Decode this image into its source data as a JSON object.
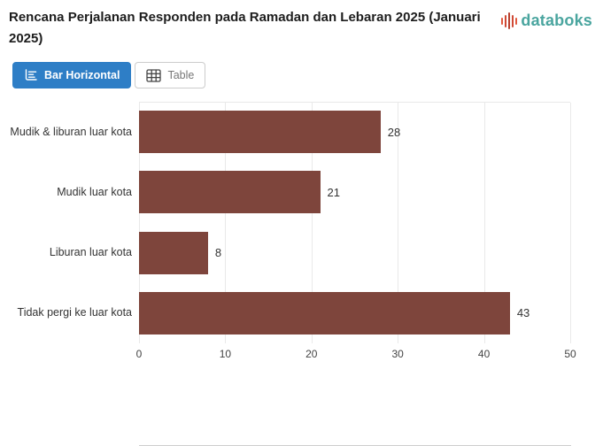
{
  "header": {
    "title": "Rencana Perjalanan Responden pada Ramadan dan Lebaran 2025 (Januari 2025)",
    "logo": {
      "text": "databoks",
      "icon": "databoks-bars-icon",
      "icon_color": "#d9533c",
      "text_color": "#4aa59f"
    }
  },
  "toolbar": {
    "bar_horizontal_label": "Bar Horizontal",
    "table_label": "Table",
    "active_button": "Bar Horizontal",
    "active_color": "#2e7ec6"
  },
  "chart_data": {
    "type": "bar",
    "orientation": "horizontal",
    "title": "Rencana Perjalanan Responden pada Ramadan dan Lebaran 2025 (Januari 2025)",
    "categories": [
      "Mudik & liburan luar kota",
      "Mudik luar kota",
      "Liburan luar kota",
      "Tidak pergi ke luar kota"
    ],
    "values": [
      28,
      21,
      8,
      43
    ],
    "xlabel": "",
    "ylabel": "",
    "xlim": [
      0,
      50
    ],
    "xticks": [
      0,
      10,
      20,
      30,
      40,
      50
    ],
    "bar_color": "#7e453c",
    "grid": true,
    "legend": false
  }
}
